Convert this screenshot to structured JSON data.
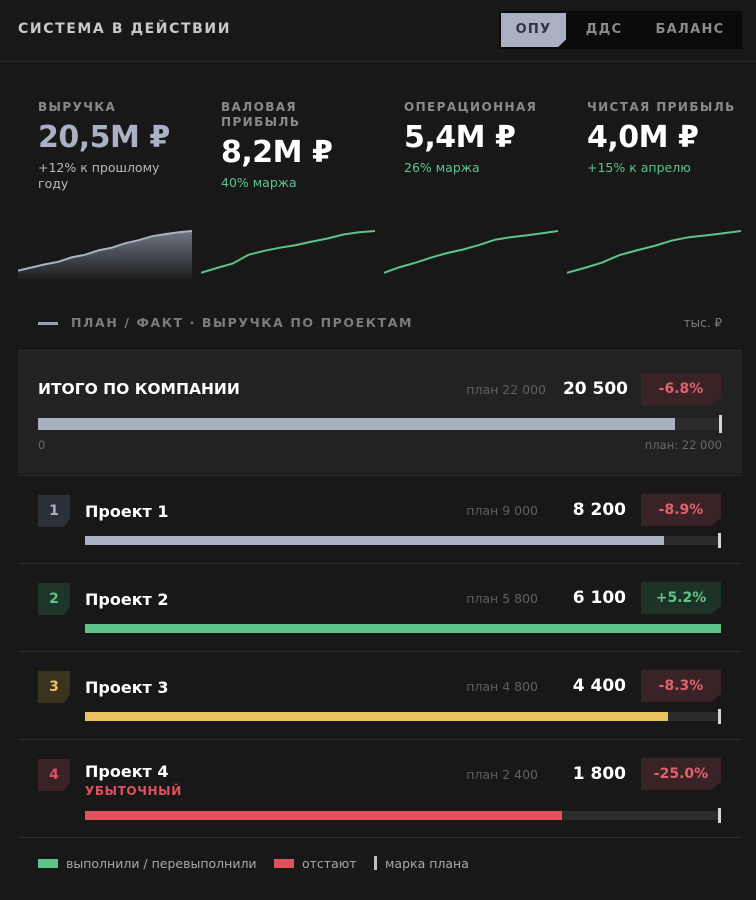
{
  "header": {
    "title": "СИСТЕМА В ДЕЙСТВИИ",
    "tabs": [
      {
        "label": "ОПУ",
        "active": true
      },
      {
        "label": "ДДС",
        "active": false
      },
      {
        "label": "БАЛАНС",
        "active": false
      }
    ]
  },
  "kpis": [
    {
      "label": "ВЫРУЧКА",
      "value": "20,5М ₽",
      "delta": "+12% к прошлому году",
      "delta_tone": "neutral",
      "spark_color": "#a9b1c3",
      "spark_fill": true,
      "trend": [
        0.1,
        0.17,
        0.24,
        0.3,
        0.4,
        0.46,
        0.56,
        0.62,
        0.72,
        0.79,
        0.88,
        0.93,
        0.97,
        1.0
      ]
    },
    {
      "label": "ВАЛОВАЯ ПРИБЫЛЬ",
      "value": "8,2М ₽",
      "delta": "40% маржа",
      "delta_tone": "positive",
      "spark_color": "#5cc48b",
      "spark_fill": false,
      "trend": [
        0.05,
        0.16,
        0.26,
        0.46,
        0.55,
        0.62,
        0.68,
        0.76,
        0.83,
        0.92,
        0.97,
        1.0
      ]
    },
    {
      "label": "ОПЕРАЦИОННАЯ",
      "value": "5,4М ₽",
      "delta": "26% маржа",
      "delta_tone": "positive",
      "spark_color": "#5cc48b",
      "spark_fill": false,
      "trend": [
        0.05,
        0.18,
        0.28,
        0.4,
        0.5,
        0.58,
        0.68,
        0.8,
        0.86,
        0.9,
        0.95,
        1.0
      ]
    },
    {
      "label": "ЧИСТАЯ ПРИБЫЛЬ",
      "value": "4,0М ₽",
      "delta": "+15% к апрелю",
      "delta_tone": "positive",
      "spark_color": "#5cc48b",
      "spark_fill": false,
      "trend": [
        0.05,
        0.16,
        0.28,
        0.45,
        0.56,
        0.66,
        0.78,
        0.86,
        0.9,
        0.95,
        1.0
      ]
    }
  ],
  "section": {
    "title": "ПЛАН / ФАКТ · ВЫРУЧКА ПО ПРОЕКТАМ",
    "unit": "тыс. ₽"
  },
  "total": {
    "label": "ИТОГО ПО КОМПАНИИ",
    "plan_text": "план 22 000",
    "fact_text": "20 500",
    "deviation": "-6.8%",
    "tone": "negative",
    "plan": 22000,
    "fact": 20500,
    "scale_min": "0",
    "scale_max": "план: 22 000"
  },
  "projects": [
    {
      "index": "1",
      "name": "Проект 1",
      "subtitle": "",
      "plan_text": "план 9 000",
      "fact_text": "8 200",
      "deviation": "-8.9%",
      "tone": "negative",
      "plan": 9000,
      "fact": 8200,
      "bar_color": "#a9b1c3",
      "num_bg": "#2c3039",
      "num_color": "#a9b1c3"
    },
    {
      "index": "2",
      "name": "Проект 2",
      "subtitle": "",
      "plan_text": "план 5 800",
      "fact_text": "6 100",
      "deviation": "+5.2%",
      "tone": "positive",
      "plan": 5800,
      "fact": 6100,
      "bar_color": "#5cc48b",
      "num_bg": "#1f3529",
      "num_color": "#5cc48b"
    },
    {
      "index": "3",
      "name": "Проект 3",
      "subtitle": "",
      "plan_text": "план 4 800",
      "fact_text": "4 400",
      "deviation": "-8.3%",
      "tone": "negative",
      "plan": 4800,
      "fact": 4400,
      "bar_color": "#e9c35e",
      "num_bg": "#3a3320",
      "num_color": "#e9c35e"
    },
    {
      "index": "4",
      "name": "Проект 4",
      "subtitle": "УБЫТОЧНЫЙ",
      "plan_text": "план 2 400",
      "fact_text": "1 800",
      "deviation": "-25.0%",
      "tone": "negative",
      "plan": 2400,
      "fact": 1800,
      "bar_color": "#e0505d",
      "num_bg": "#3a2226",
      "num_color": "#e0505d"
    }
  ],
  "legend": [
    {
      "label": "выполнили / перевыполнили",
      "kind": "swatch",
      "color": "#5cc48b"
    },
    {
      "label": "отстают",
      "kind": "swatch",
      "color": "#e0505d"
    },
    {
      "label": "марка плана",
      "kind": "mark",
      "color": "#bdbdbd"
    }
  ]
}
